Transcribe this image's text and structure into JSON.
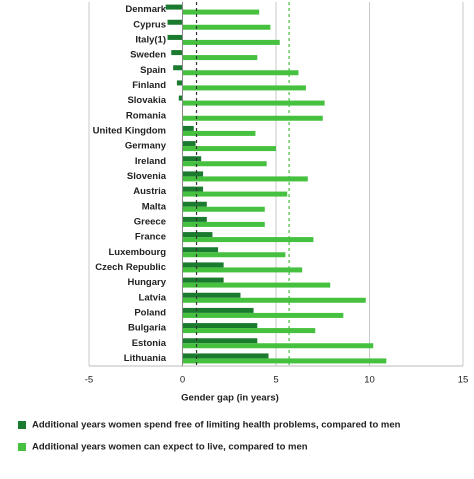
{
  "chart_data": {
    "type": "bar",
    "orientation": "horizontal",
    "categories": [
      "Denmark",
      "Cyprus",
      "Italy(1)",
      "Sweden",
      "Spain",
      "Finland",
      "Slovakia",
      "Romania",
      "United Kingdom",
      "Germany",
      "Ireland",
      "Slovenia",
      "Austria",
      "Malta",
      "Greece",
      "France",
      "Luxembourg",
      "Czech Republic",
      "Hungary",
      "Latvia",
      "Poland",
      "Bulgaria",
      "Estonia",
      "Lithuania"
    ],
    "series": [
      {
        "name": "Additional years women spend free of limiting health problems, compared to men",
        "color": "#1a7a2e",
        "values": [
          -0.9,
          -0.8,
          -0.8,
          -0.6,
          -0.5,
          -0.3,
          -0.2,
          0.0,
          0.6,
          0.7,
          1.0,
          1.1,
          1.1,
          1.3,
          1.3,
          1.6,
          1.9,
          2.2,
          2.2,
          3.1,
          3.8,
          4.0,
          4.0,
          4.6
        ]
      },
      {
        "name": "Additional years women can expect to live, compared to men",
        "color": "#45c13f",
        "values": [
          4.1,
          4.7,
          5.2,
          4.0,
          6.2,
          6.6,
          7.6,
          7.5,
          3.9,
          5.0,
          4.5,
          6.7,
          5.6,
          4.4,
          4.4,
          7.0,
          5.5,
          6.4,
          7.9,
          9.8,
          8.6,
          7.1,
          10.2,
          10.9
        ]
      }
    ],
    "xlim": [
      -5,
      15
    ],
    "xticks": [
      -5,
      0,
      5,
      10,
      15
    ],
    "xlabel": "Gender gap (in years)",
    "grid": true,
    "legend": "bottom",
    "reference_lines": [
      {
        "value": 0.75,
        "color": "#333333"
      },
      {
        "value": 5.7,
        "color": "#45c13f"
      }
    ]
  }
}
